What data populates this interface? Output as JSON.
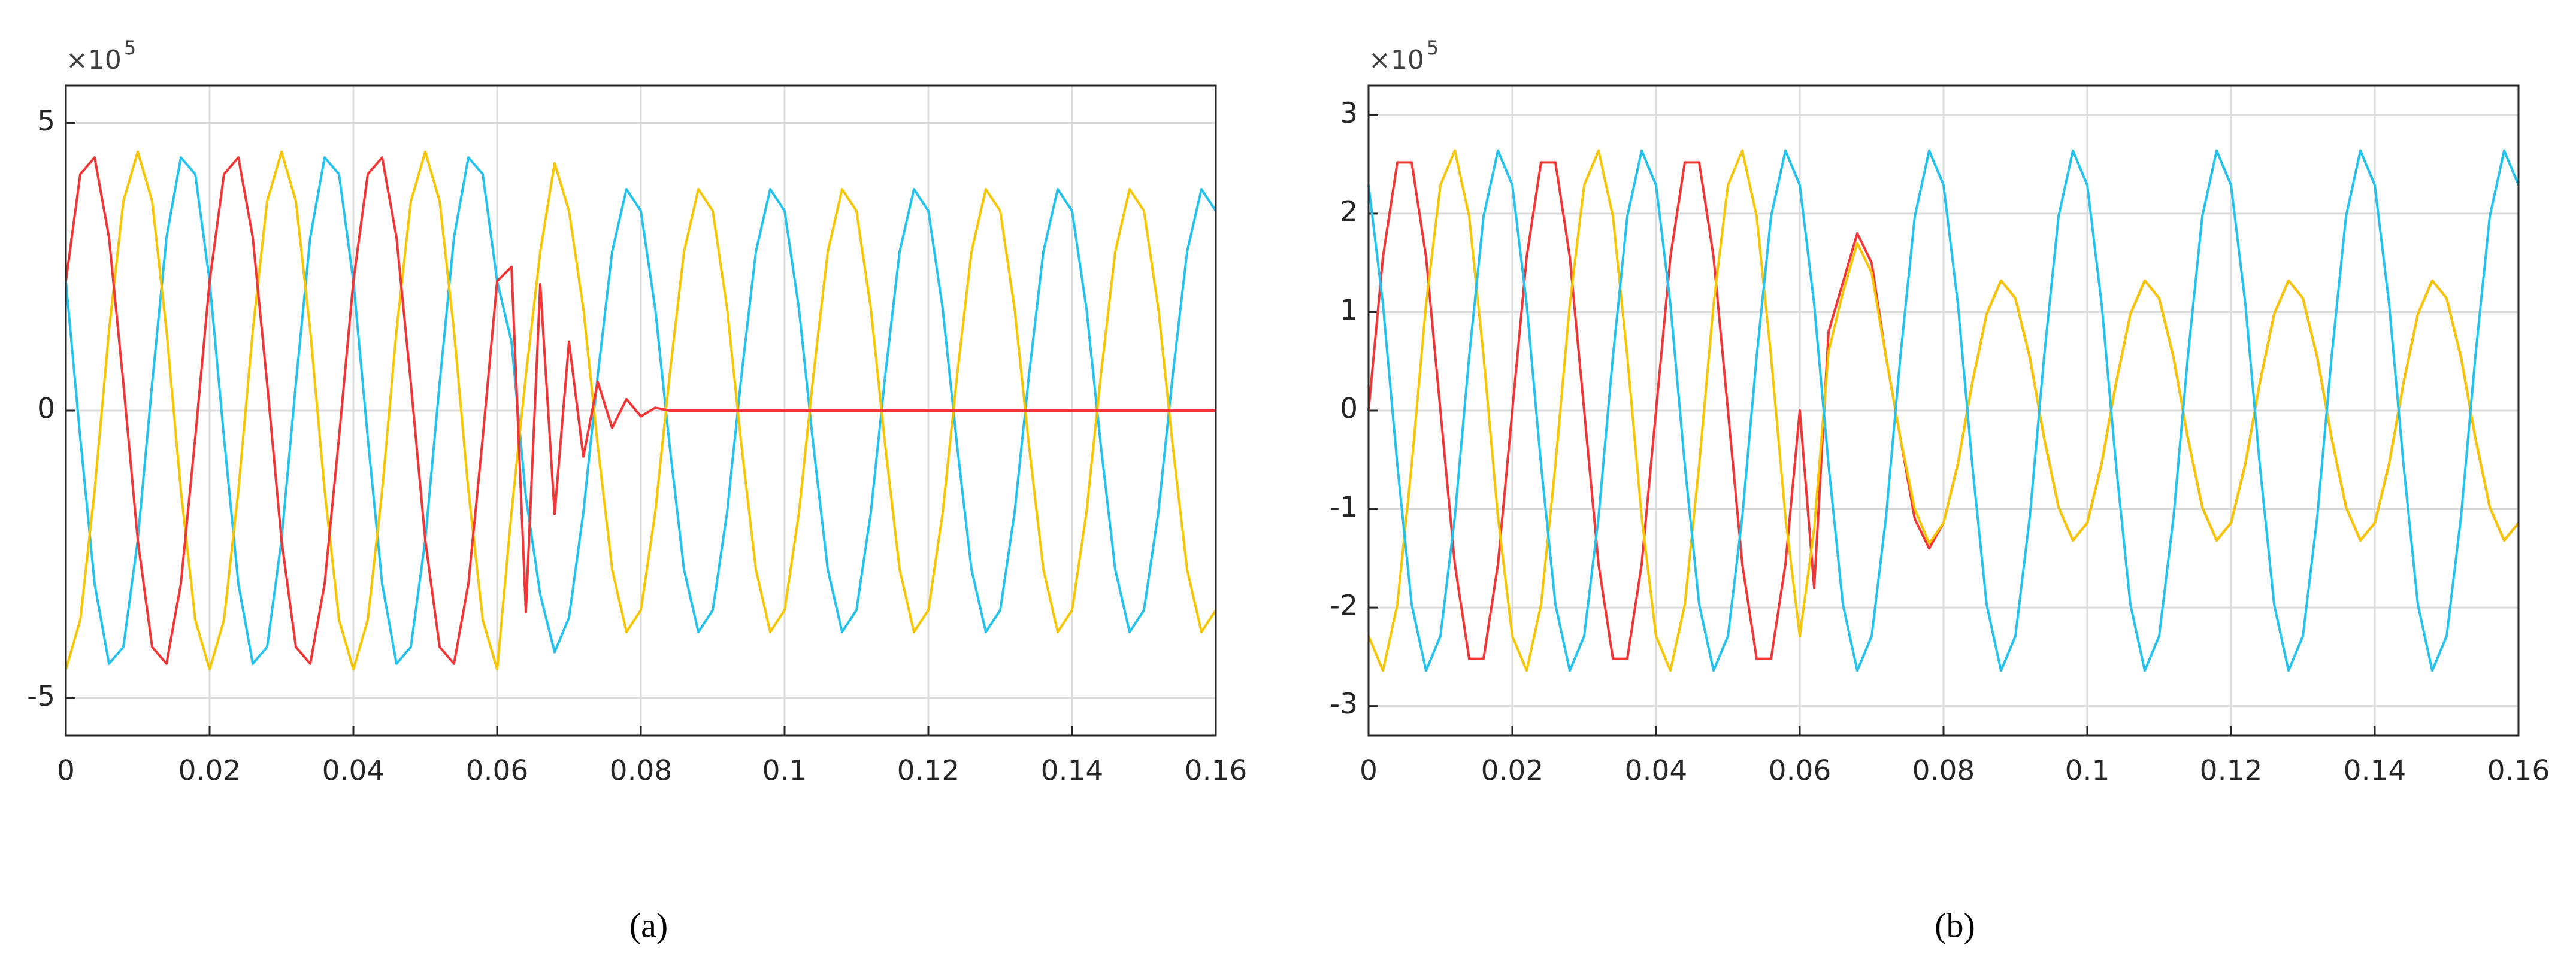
{
  "chart_data": [
    {
      "type": "line",
      "caption": "(a)",
      "y_multiplier": "×10",
      "y_multiplier_exponent": "5",
      "x": [
        0,
        0.002,
        0.004,
        0.006,
        0.008,
        0.01,
        0.012,
        0.014,
        0.016,
        0.018,
        0.02,
        0.022,
        0.024,
        0.026,
        0.028,
        0.03,
        0.032,
        0.034,
        0.036,
        0.038,
        0.04,
        0.042,
        0.044,
        0.046,
        0.048,
        0.05,
        0.052,
        0.054,
        0.056,
        0.058,
        0.06,
        0.062,
        0.064,
        0.066,
        0.068,
        0.07,
        0.072,
        0.074,
        0.076,
        0.078,
        0.08,
        0.082,
        0.084,
        0.086,
        0.088,
        0.09,
        0.092,
        0.094,
        0.096,
        0.098,
        0.1,
        0.102,
        0.104,
        0.106,
        0.108,
        0.11,
        0.112,
        0.114,
        0.116,
        0.118,
        0.12,
        0.122,
        0.124,
        0.126,
        0.128,
        0.13,
        0.132,
        0.134,
        0.136,
        0.138,
        0.14,
        0.142,
        0.144,
        0.146,
        0.148,
        0.15,
        0.152,
        0.154,
        0.156,
        0.158,
        0.16
      ],
      "series": [
        {
          "color": "#24c3ee",
          "values": [
            2.25,
            -0.47,
            -3.01,
            -4.4,
            -4.11,
            -2.25,
            0.47,
            3.01,
            4.4,
            4.11,
            2.25,
            -0.47,
            -3.01,
            -4.4,
            -4.11,
            -2.25,
            0.47,
            3.01,
            4.4,
            4.11,
            2.25,
            -0.47,
            -3.01,
            -4.4,
            -4.11,
            -2.25,
            0.47,
            3.01,
            4.4,
            4.11,
            2.25,
            1.2,
            -1.5,
            -3.2,
            -4.2,
            -3.6,
            -1.77,
            0.61,
            2.76,
            3.85,
            3.47,
            1.77,
            -0.61,
            -2.76,
            -3.85,
            -3.47,
            -1.77,
            0.61,
            2.76,
            3.85,
            3.47,
            1.77,
            -0.61,
            -2.76,
            -3.85,
            -3.47,
            -1.77,
            0.61,
            2.76,
            3.85,
            3.47,
            1.77,
            -0.61,
            -2.76,
            -3.85,
            -3.47,
            -1.77,
            0.61,
            2.76,
            3.85,
            3.47,
            1.77,
            -0.61,
            -2.76,
            -3.85,
            -3.47,
            -1.77,
            0.61,
            2.76,
            3.85,
            3.47
          ]
        },
        {
          "color": "#f7c600",
          "values": [
            -4.5,
            -3.64,
            -1.39,
            1.39,
            3.64,
            4.5,
            3.64,
            1.39,
            -1.39,
            -3.64,
            -4.5,
            -3.64,
            -1.39,
            1.39,
            3.64,
            4.5,
            3.64,
            1.39,
            -1.39,
            -3.64,
            -4.5,
            -3.64,
            -1.39,
            1.39,
            3.64,
            4.5,
            3.64,
            1.39,
            -1.39,
            -3.64,
            -4.5,
            -1.77,
            0.61,
            2.76,
            4.3,
            3.47,
            1.77,
            -0.61,
            -2.76,
            -3.85,
            -3.47,
            -1.77,
            0.61,
            2.76,
            3.85,
            3.47,
            1.77,
            -0.61,
            -2.76,
            -3.85,
            -3.47,
            -1.77,
            0.61,
            2.76,
            3.85,
            3.47,
            1.77,
            -0.61,
            -2.76,
            -3.85,
            -3.47,
            -1.77,
            0.61,
            2.76,
            3.85,
            3.47,
            1.77,
            -0.61,
            -2.76,
            -3.85,
            -3.47,
            -1.77,
            0.61,
            2.76,
            3.85,
            3.47,
            1.77,
            -0.61,
            -2.76,
            -3.85,
            -3.47
          ]
        },
        {
          "color": "#f53535",
          "values": [
            2.25,
            4.11,
            4.4,
            3.01,
            0.47,
            -2.25,
            -4.11,
            -4.4,
            -3.01,
            -0.47,
            2.25,
            4.11,
            4.4,
            3.01,
            0.47,
            -2.25,
            -4.11,
            -4.4,
            -3.01,
            -0.47,
            2.25,
            4.11,
            4.4,
            3.01,
            0.47,
            -2.25,
            -4.11,
            -4.4,
            -3.01,
            -0.47,
            2.25,
            2.5,
            -3.5,
            2.2,
            -1.8,
            1.2,
            -0.8,
            0.5,
            -0.3,
            0.2,
            -0.1,
            0.05,
            0,
            0,
            0,
            0,
            0,
            0,
            0,
            0,
            0,
            0,
            0,
            0,
            0,
            0,
            0,
            0,
            0,
            0,
            0,
            0,
            0,
            0,
            0,
            0,
            0,
            0,
            0,
            0,
            0,
            0,
            0,
            0,
            0,
            0,
            0,
            0,
            0,
            0,
            0
          ]
        }
      ],
      "xlim": [
        0,
        0.16
      ],
      "xticks": [
        0,
        0.02,
        0.04,
        0.06,
        0.08,
        0.1,
        0.12,
        0.14,
        0.16
      ],
      "ylim": [
        -5.65,
        5.65
      ],
      "yticks": [
        -5,
        0,
        5
      ],
      "grid": true
    },
    {
      "type": "line",
      "caption": "(b)",
      "y_multiplier": "×10",
      "y_multiplier_exponent": "5",
      "x": [
        0,
        0.002,
        0.004,
        0.006,
        0.008,
        0.01,
        0.012,
        0.014,
        0.016,
        0.018,
        0.02,
        0.022,
        0.024,
        0.026,
        0.028,
        0.03,
        0.032,
        0.034,
        0.036,
        0.038,
        0.04,
        0.042,
        0.044,
        0.046,
        0.048,
        0.05,
        0.052,
        0.054,
        0.056,
        0.058,
        0.06,
        0.062,
        0.064,
        0.066,
        0.068,
        0.07,
        0.072,
        0.074,
        0.076,
        0.078,
        0.08,
        0.082,
        0.084,
        0.086,
        0.088,
        0.09,
        0.092,
        0.094,
        0.096,
        0.098,
        0.1,
        0.102,
        0.104,
        0.106,
        0.108,
        0.11,
        0.112,
        0.114,
        0.116,
        0.118,
        0.12,
        0.122,
        0.124,
        0.126,
        0.128,
        0.13,
        0.132,
        0.134,
        0.136,
        0.138,
        0.14,
        0.142,
        0.144,
        0.146,
        0.148,
        0.15,
        0.152,
        0.154,
        0.156,
        0.158,
        0.16
      ],
      "series": [
        {
          "color": "#f53535",
          "values": [
            0,
            1.56,
            2.52,
            2.52,
            1.56,
            0,
            -1.56,
            -2.52,
            -2.52,
            -1.56,
            0,
            1.56,
            2.52,
            2.52,
            1.56,
            0,
            -1.56,
            -2.52,
            -2.52,
            -1.56,
            0,
            1.56,
            2.52,
            2.52,
            1.56,
            0,
            -1.56,
            -2.52,
            -2.52,
            -1.56,
            0,
            -1.8,
            0.8,
            1.3,
            1.8,
            1.5,
            0.54,
            -0.28,
            -1.1,
            -1.4,
            -1.14,
            -0.54,
            0.28,
            0.98,
            1.32,
            1.14,
            0.54,
            -0.28,
            -0.98,
            -1.32,
            -1.14,
            -0.54,
            0.28,
            0.98,
            1.32,
            1.14,
            0.54,
            -0.28,
            -0.98,
            -1.32,
            -1.14,
            -0.54,
            0.28,
            0.98,
            1.32,
            1.14,
            0.54,
            -0.28,
            -0.98,
            -1.32,
            -1.14,
            -0.54,
            0.28,
            0.98,
            1.32,
            1.14,
            0.54,
            -0.28,
            -0.98,
            -1.32,
            -1.14
          ]
        },
        {
          "color": "#f7c600",
          "values": [
            -2.29,
            -2.64,
            -1.97,
            -0.55,
            1.08,
            2.29,
            2.64,
            1.97,
            0.55,
            -1.08,
            -2.29,
            -2.64,
            -1.97,
            -0.55,
            1.08,
            2.29,
            2.64,
            1.97,
            0.55,
            -1.08,
            -2.29,
            -2.64,
            -1.97,
            -0.55,
            1.08,
            2.29,
            2.64,
            1.97,
            0.55,
            -1.08,
            -2.29,
            -1.2,
            0.6,
            1.2,
            1.7,
            1.4,
            0.54,
            -0.28,
            -1.0,
            -1.35,
            -1.14,
            -0.54,
            0.28,
            0.98,
            1.32,
            1.14,
            0.54,
            -0.28,
            -0.98,
            -1.32,
            -1.14,
            -0.54,
            0.28,
            0.98,
            1.32,
            1.14,
            0.54,
            -0.28,
            -0.98,
            -1.32,
            -1.14,
            -0.54,
            0.28,
            0.98,
            1.32,
            1.14,
            0.54,
            -0.28,
            -0.98,
            -1.32,
            -1.14,
            -0.54,
            0.28,
            0.98,
            1.32,
            1.14,
            0.54,
            -0.28,
            -0.98,
            -1.32,
            -1.14
          ]
        },
        {
          "color": "#24c3ee",
          "values": [
            2.29,
            1.08,
            -0.55,
            -1.97,
            -2.64,
            -2.29,
            -1.08,
            0.55,
            1.97,
            2.64,
            2.29,
            1.08,
            -0.55,
            -1.97,
            -2.64,
            -2.29,
            -1.08,
            0.55,
            1.97,
            2.64,
            2.29,
            1.08,
            -0.55,
            -1.97,
            -2.64,
            -2.29,
            -1.08,
            0.55,
            1.97,
            2.64,
            2.29,
            1.08,
            -0.55,
            -1.97,
            -2.64,
            -2.29,
            -1.08,
            0.55,
            1.97,
            2.64,
            2.29,
            1.08,
            -0.55,
            -1.97,
            -2.64,
            -2.29,
            -1.08,
            0.55,
            1.97,
            2.64,
            2.29,
            1.08,
            -0.55,
            -1.97,
            -2.64,
            -2.29,
            -1.08,
            0.55,
            1.97,
            2.64,
            2.29,
            1.08,
            -0.55,
            -1.97,
            -2.64,
            -2.29,
            -1.08,
            0.55,
            1.97,
            2.64,
            2.29,
            1.08,
            -0.55,
            -1.97,
            -2.64,
            -2.29,
            -1.08,
            0.55,
            1.97,
            2.64,
            2.29
          ]
        }
      ],
      "xlim": [
        0,
        0.16
      ],
      "xticks": [
        0,
        0.02,
        0.04,
        0.06,
        0.08,
        0.1,
        0.12,
        0.14,
        0.16
      ],
      "ylim": [
        -3.3,
        3.3
      ],
      "yticks": [
        -3,
        -2,
        -1,
        0,
        1,
        2,
        3
      ],
      "grid": true
    }
  ]
}
